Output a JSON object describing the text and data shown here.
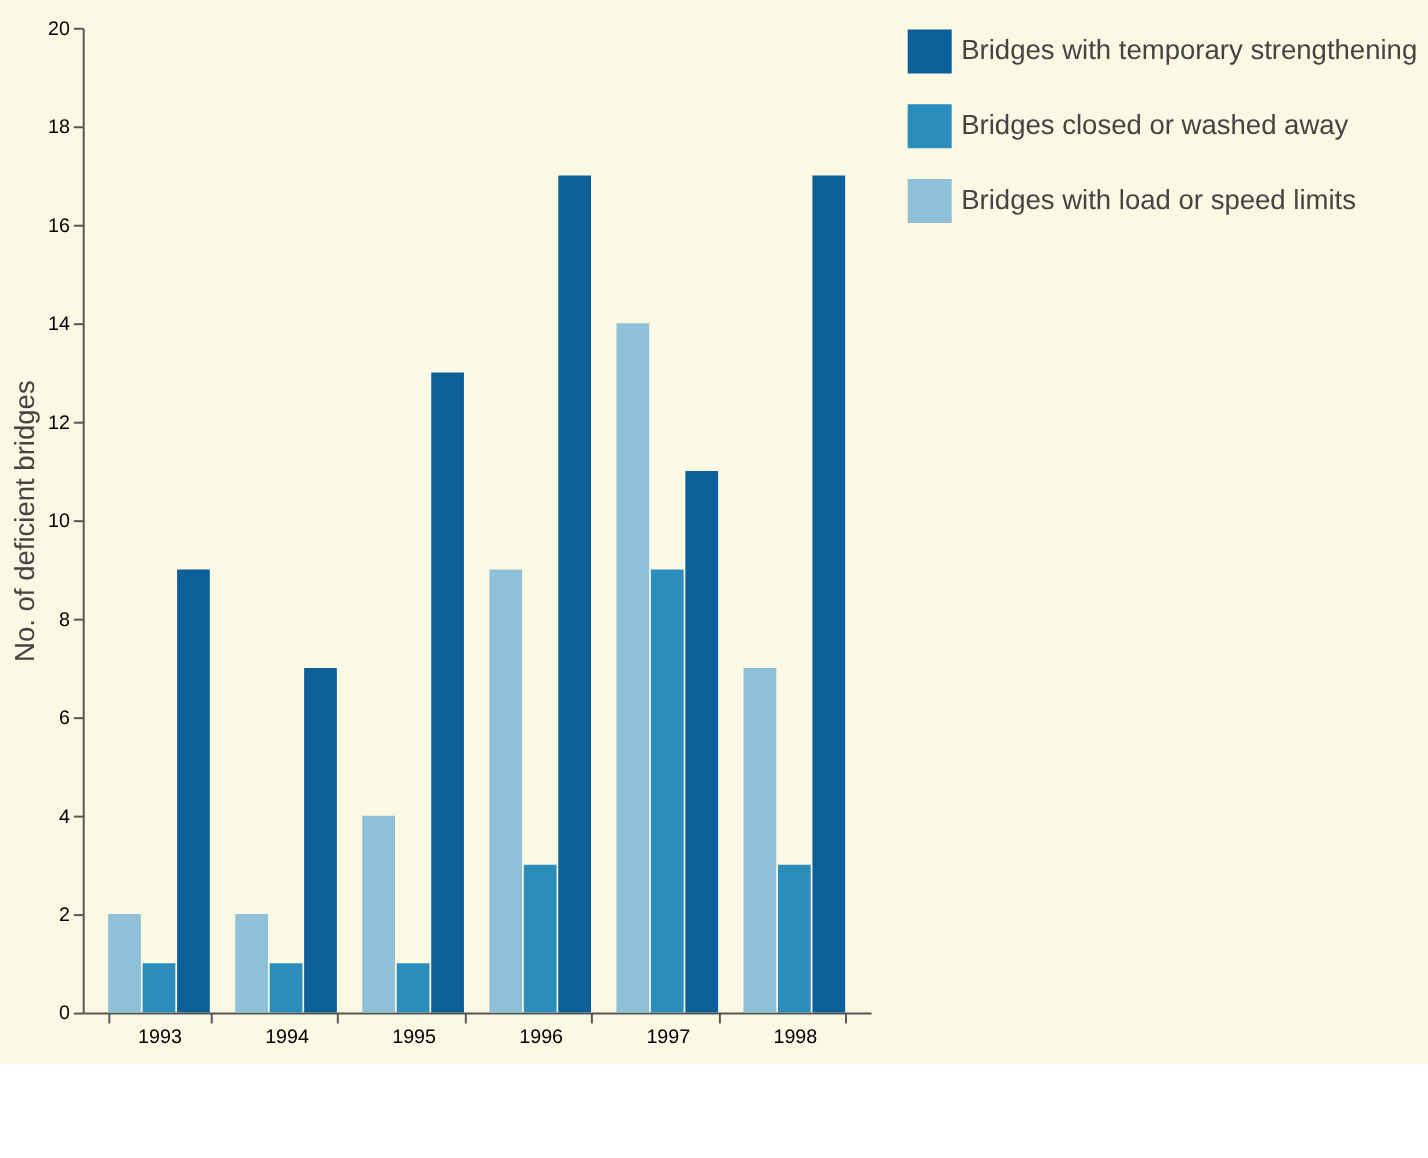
{
  "chart_data": {
    "type": "bar",
    "ylabel": "No. of deficient bridges",
    "categories": [
      "1993",
      "1994",
      "1995",
      "1996",
      "1997",
      "1998"
    ],
    "series": [
      {
        "name": "Bridges with temporary strengthening",
        "color": "#0d5f9a",
        "values": [
          9,
          7,
          13,
          17,
          11,
          17
        ]
      },
      {
        "name": "Bridges closed or washed away",
        "color": "#2a8dbb",
        "values": [
          1,
          1,
          1,
          3,
          9,
          3
        ]
      },
      {
        "name": "Bridges with load or speed limits",
        "color": "#8ec0d8",
        "values": [
          2,
          2,
          4,
          9,
          14,
          7
        ]
      }
    ],
    "ylim": [
      0,
      20
    ],
    "yticks": [
      0,
      2,
      4,
      6,
      8,
      10,
      12,
      14,
      16,
      18,
      20
    ],
    "grid": false,
    "legend": "top right"
  }
}
